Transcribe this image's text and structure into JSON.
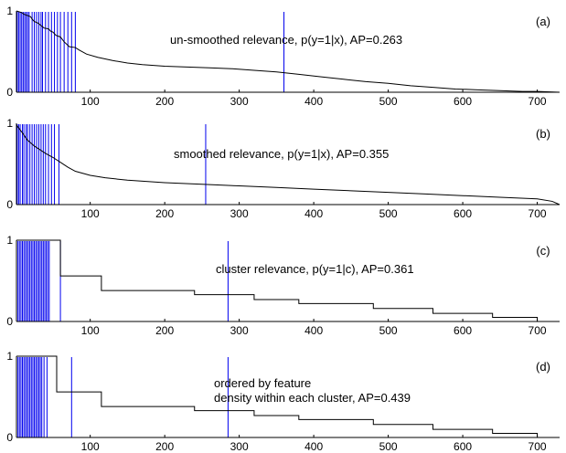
{
  "chart_data": [
    {
      "type": "line",
      "panel_label": "(a)",
      "annotation_lines": [
        "un-smoothed relevance, p(y=1|x), AP=0.263"
      ],
      "xlim": [
        1,
        730
      ],
      "ylim": [
        0,
        1
      ],
      "x_ticks": [
        100,
        200,
        300,
        400,
        500,
        600,
        700
      ],
      "y_ticks": [
        0,
        1
      ],
      "curve": {
        "x": [
          1,
          8,
          11,
          20,
          22,
          25,
          30,
          34,
          38,
          44,
          47,
          50,
          52,
          54,
          60,
          65,
          72,
          80,
          85,
          95,
          110,
          130,
          150,
          170,
          200,
          230,
          260,
          290,
          320,
          350,
          380,
          410,
          440,
          470,
          500,
          530,
          560,
          590,
          620,
          650,
          680,
          700,
          730
        ],
        "y": [
          1.0,
          0.98,
          0.96,
          0.93,
          0.9,
          0.87,
          0.85,
          0.82,
          0.79,
          0.78,
          0.75,
          0.74,
          0.72,
          0.7,
          0.68,
          0.62,
          0.56,
          0.55,
          0.52,
          0.47,
          0.43,
          0.39,
          0.36,
          0.34,
          0.32,
          0.31,
          0.3,
          0.29,
          0.27,
          0.25,
          0.22,
          0.19,
          0.16,
          0.13,
          0.11,
          0.08,
          0.06,
          0.04,
          0.03,
          0.02,
          0.01,
          0.01,
          0.0
        ]
      },
      "relevant_x": [
        2,
        4,
        6,
        8,
        10,
        12,
        14,
        16,
        18,
        22,
        25,
        28,
        31,
        34,
        36,
        40,
        44,
        48,
        52,
        56,
        60,
        65,
        70,
        75,
        80,
        360
      ],
      "colors": {
        "curve": "#000000",
        "relevant": "#0000ee"
      }
    },
    {
      "type": "line",
      "panel_label": "(b)",
      "annotation_lines": [
        "smoothed relevance, p(y=1|x), AP=0.355"
      ],
      "xlim": [
        1,
        730
      ],
      "ylim": [
        0,
        1
      ],
      "x_ticks": [
        100,
        200,
        300,
        400,
        500,
        600,
        700
      ],
      "y_ticks": [
        0,
        1
      ],
      "curve": {
        "x": [
          1,
          5,
          10,
          15,
          20,
          25,
          30,
          40,
          50,
          60,
          70,
          80,
          100,
          120,
          150,
          200,
          250,
          300,
          350,
          400,
          450,
          500,
          550,
          600,
          650,
          700,
          720,
          730
        ],
        "y": [
          0.98,
          0.93,
          0.87,
          0.8,
          0.76,
          0.72,
          0.69,
          0.63,
          0.58,
          0.52,
          0.46,
          0.41,
          0.36,
          0.33,
          0.3,
          0.27,
          0.25,
          0.23,
          0.21,
          0.19,
          0.17,
          0.15,
          0.13,
          0.11,
          0.09,
          0.07,
          0.04,
          0.0
        ]
      },
      "relevant_x": [
        2,
        4,
        6,
        9,
        11,
        14,
        16,
        19,
        22,
        25,
        28,
        31,
        34,
        37,
        40,
        44,
        48,
        52,
        58,
        255
      ],
      "colors": {
        "curve": "#000000",
        "relevant": "#0000ee"
      }
    },
    {
      "type": "line",
      "panel_label": "(c)",
      "annotation_lines": [
        "cluster relevance, p(y=1|c), AP=0.361"
      ],
      "xlim": [
        1,
        730
      ],
      "ylim": [
        0,
        1
      ],
      "x_ticks": [
        100,
        200,
        300,
        400,
        500,
        600,
        700
      ],
      "y_ticks": [
        0,
        1
      ],
      "curve": {
        "x": [
          1,
          60,
          60,
          115,
          115,
          240,
          240,
          320,
          320,
          380,
          380,
          480,
          480,
          560,
          560,
          640,
          640,
          700,
          700,
          720
        ],
        "y": [
          1.0,
          1.0,
          0.56,
          0.56,
          0.38,
          0.38,
          0.33,
          0.33,
          0.27,
          0.27,
          0.22,
          0.22,
          0.16,
          0.16,
          0.1,
          0.1,
          0.05,
          0.05,
          0.0,
          0.0
        ]
      },
      "relevant_x": [
        3,
        5,
        7,
        9,
        11,
        13,
        15,
        17,
        19,
        21,
        23,
        25,
        27,
        29,
        31,
        33,
        35,
        37,
        39,
        41,
        43,
        45,
        60,
        285
      ],
      "colors": {
        "curve": "#000000",
        "relevant": "#0000ee"
      }
    },
    {
      "type": "line",
      "panel_label": "(d)",
      "annotation_lines": [
        "ordered by feature",
        "density within each cluster, AP=0.439"
      ],
      "xlim": [
        1,
        730
      ],
      "ylim": [
        0,
        1
      ],
      "x_ticks": [
        100,
        200,
        300,
        400,
        500,
        600,
        700
      ],
      "y_ticks": [
        0,
        1
      ],
      "curve": {
        "x": [
          1,
          55,
          55,
          115,
          115,
          240,
          240,
          320,
          320,
          380,
          380,
          480,
          480,
          560,
          560,
          640,
          640,
          700,
          700,
          720
        ],
        "y": [
          1.0,
          1.0,
          0.56,
          0.56,
          0.38,
          0.38,
          0.33,
          0.33,
          0.27,
          0.27,
          0.22,
          0.22,
          0.16,
          0.16,
          0.1,
          0.1,
          0.05,
          0.05,
          0.0,
          0.0
        ]
      },
      "relevant_x": [
        3,
        5,
        7,
        9,
        11,
        13,
        15,
        17,
        19,
        21,
        23,
        25,
        27,
        29,
        31,
        33,
        35,
        38,
        42,
        75,
        285
      ],
      "colors": {
        "curve": "#000000",
        "relevant": "#0000ee"
      }
    }
  ]
}
